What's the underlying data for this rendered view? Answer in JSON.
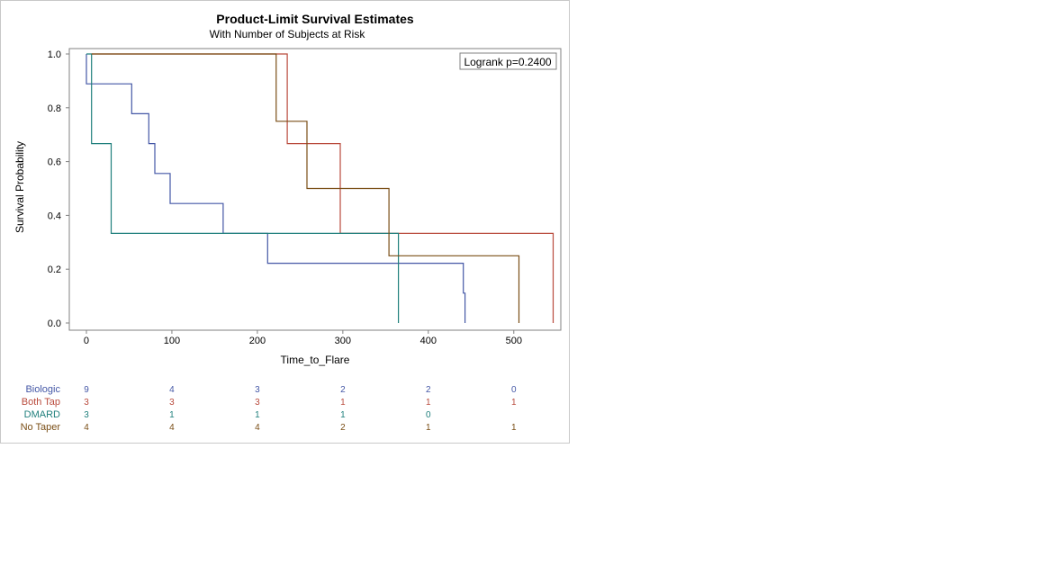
{
  "chart_data": {
    "type": "line",
    "title": "Product-Limit Survival Estimates",
    "subtitle": "With Number of Subjects at Risk",
    "xlabel": "Time_to_Flare",
    "ylabel": "Survival Probability",
    "xlim": [
      -20,
      555
    ],
    "ylim": [
      0,
      1.0
    ],
    "xticks": [
      0,
      100,
      200,
      300,
      400,
      500
    ],
    "yticks": [
      0.0,
      0.2,
      0.4,
      0.6,
      0.8,
      1.0
    ],
    "xtick_labels": [
      "0",
      "100",
      "200",
      "300",
      "400",
      "500"
    ],
    "ytick_labels": [
      "0.0",
      "0.2",
      "0.4",
      "0.6",
      "0.8",
      "1.0"
    ],
    "annotation": "Logrank p=0.2400",
    "series": [
      {
        "name": "Biologic",
        "color": "#4457a6",
        "x": [
          0,
          0,
          53,
          53,
          73,
          73,
          80,
          80,
          98,
          98,
          160,
          160,
          212,
          212,
          441,
          441,
          443,
          443
        ],
        "y": [
          1.0,
          0.889,
          0.889,
          0.778,
          0.778,
          0.667,
          0.667,
          0.556,
          0.556,
          0.444,
          0.444,
          0.333,
          0.333,
          0.222,
          0.222,
          0.111,
          0.111,
          0.0
        ]
      },
      {
        "name": "Both Tap",
        "color": "#b94a3c",
        "x": [
          6,
          235,
          235,
          297,
          297,
          546,
          546
        ],
        "y": [
          1.0,
          1.0,
          0.667,
          0.667,
          0.333,
          0.333,
          0.0
        ]
      },
      {
        "name": "DMARD",
        "color": "#1f7f7c",
        "x": [
          0,
          6,
          6,
          29,
          29,
          365,
          365
        ],
        "y": [
          1.0,
          1.0,
          0.667,
          0.667,
          0.333,
          0.333,
          0.0
        ]
      },
      {
        "name": "No Taper",
        "color": "#7a4e16",
        "x": [
          6,
          222,
          222,
          258,
          258,
          354,
          354,
          506,
          506
        ],
        "y": [
          1.0,
          1.0,
          0.75,
          0.75,
          0.5,
          0.5,
          0.25,
          0.25,
          0.0
        ]
      }
    ],
    "risk_table": {
      "times": [
        0,
        100,
        200,
        300,
        400,
        500
      ],
      "rows": [
        {
          "name": "Biologic",
          "color": "#4457a6",
          "counts": [
            "9",
            "4",
            "3",
            "2",
            "2",
            "0"
          ]
        },
        {
          "name": "Both Tap",
          "color": "#b94a3c",
          "counts": [
            "3",
            "3",
            "3",
            "1",
            "1",
            "1"
          ]
        },
        {
          "name": "DMARD",
          "color": "#1f7f7c",
          "counts": [
            "3",
            "1",
            "1",
            "1",
            "0",
            ""
          ]
        },
        {
          "name": "No Taper",
          "color": "#7a4e16",
          "counts": [
            "4",
            "4",
            "4",
            "2",
            "1",
            "1"
          ]
        }
      ]
    }
  }
}
